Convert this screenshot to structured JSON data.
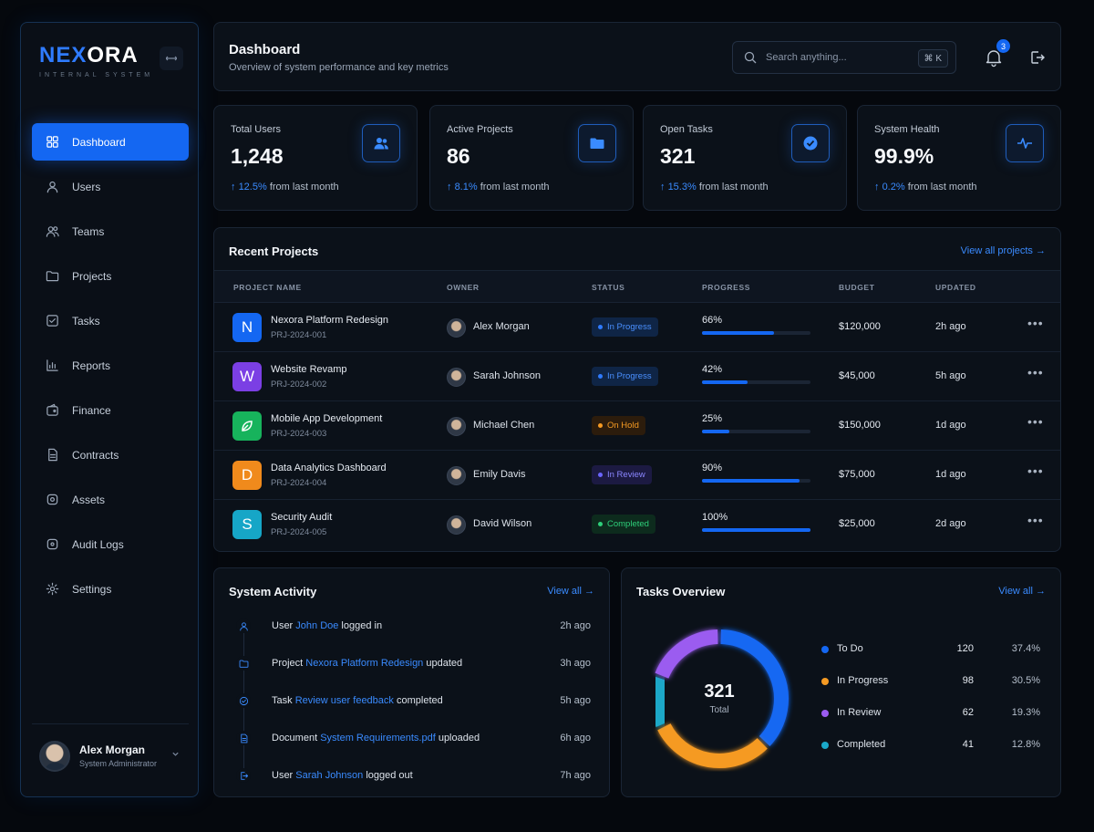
{
  "brand": {
    "logo_blue": "NEX",
    "logo_white": "ORA",
    "subtitle": "INTERNAL SYSTEM"
  },
  "sidebar": {
    "items": [
      {
        "label": "Dashboard",
        "icon": "grid-icon",
        "active": true
      },
      {
        "label": "Users",
        "icon": "user-icon"
      },
      {
        "label": "Teams",
        "icon": "team-icon"
      },
      {
        "label": "Projects",
        "icon": "folder-icon"
      },
      {
        "label": "Tasks",
        "icon": "check-square-icon"
      },
      {
        "label": "Reports",
        "icon": "chart-icon"
      },
      {
        "label": "Finance",
        "icon": "wallet-icon"
      },
      {
        "label": "Contracts",
        "icon": "document-icon"
      },
      {
        "label": "Assets",
        "icon": "box-icon"
      },
      {
        "label": "Audit Logs",
        "icon": "audit-icon"
      },
      {
        "label": "Settings",
        "icon": "gear-icon"
      }
    ],
    "user": {
      "name": "Alex Morgan",
      "role": "System Administrator"
    }
  },
  "header": {
    "title": "Dashboard",
    "subtitle": "Overview of system performance and key metrics",
    "search_placeholder": "Search anything...",
    "shortcut": "⌘ K",
    "notification_count": "3"
  },
  "stats": [
    {
      "title": "Total Users",
      "value": "1,248",
      "change": "12.5%",
      "suffix": " from last month",
      "icon": "users-icon"
    },
    {
      "title": "Active Projects",
      "value": "86",
      "change": "8.1%",
      "suffix": " from last month",
      "icon": "folder-icon"
    },
    {
      "title": "Open Tasks",
      "value": "321",
      "change": "15.3%",
      "suffix": " from last month",
      "icon": "check-circle-icon"
    },
    {
      "title": "System Health",
      "value": "99.9%",
      "change": "0.2%",
      "suffix": " from last month",
      "icon": "pulse-icon"
    }
  ],
  "projects": {
    "title": "Recent Projects",
    "link": "View all projects →",
    "columns": [
      "PROJECT NAME",
      "OWNER",
      "STATUS",
      "PROGRESS",
      "BUDGET",
      "UPDATED"
    ],
    "rows": [
      {
        "letter": "N",
        "name": "Nexora Platform Redesign",
        "id": "PRJ-2024-001",
        "owner": "Alex Morgan",
        "status": "In Progress",
        "progress": 66,
        "progress_label": "66%",
        "budget": "$120,000",
        "updated": "2h ago",
        "color": "#1467f2"
      },
      {
        "letter": "W",
        "name": "Website Revamp",
        "id": "PRJ-2024-002",
        "owner": "Sarah Johnson",
        "status": "In Progress",
        "progress": 42,
        "progress_label": "42%",
        "budget": "$45,000",
        "updated": "5h ago",
        "color": "#7b3fe4"
      },
      {
        "letter": "leaf-icon",
        "name": "Mobile App Development",
        "id": "PRJ-2024-003",
        "owner": "Michael Chen",
        "status": "On Hold",
        "progress": 25,
        "progress_label": "25%",
        "budget": "$150,000",
        "updated": "1d ago",
        "color": "#17b35c"
      },
      {
        "letter": "D",
        "name": "Data Analytics Dashboard",
        "id": "PRJ-2024-004",
        "owner": "Emily Davis",
        "status": "In Review",
        "progress": 90,
        "progress_label": "90%",
        "budget": "$75,000",
        "updated": "1d ago",
        "color": "#f08a1c"
      },
      {
        "letter": "S",
        "name": "Security Audit",
        "id": "PRJ-2024-005",
        "owner": "David Wilson",
        "status": "Completed",
        "progress": 100,
        "progress_label": "100%",
        "budget": "$25,000",
        "updated": "2d ago",
        "color": "#16a6c7"
      }
    ]
  },
  "activity": {
    "title": "System Activity",
    "link": "View all →",
    "items": [
      {
        "pre": "User ",
        "hl": "John Doe",
        "post": " logged in",
        "time": "2h ago",
        "icon": "user-icon"
      },
      {
        "pre": "Project ",
        "hl": "Nexora Platform Redesign",
        "post": " updated",
        "time": "3h ago",
        "icon": "folder-icon"
      },
      {
        "pre": "Task ",
        "hl": "Review user feedback",
        "post": " completed",
        "time": "5h ago",
        "icon": "check-circle-icon"
      },
      {
        "pre": "Document ",
        "hl": "System Requirements.pdf",
        "post": " uploaded",
        "time": "6h ago",
        "icon": "document-icon"
      },
      {
        "pre": "User ",
        "hl": "Sarah Johnson",
        "post": " logged out",
        "time": "7h ago",
        "icon": "logout-icon"
      }
    ]
  },
  "tasks": {
    "title": "Tasks Overview",
    "link": "View all →",
    "total": "321",
    "total_label": "Total",
    "legend": [
      {
        "label": "To Do",
        "count": "120",
        "pct": "37.4%",
        "color": "#1467f2",
        "value": 120
      },
      {
        "label": "In Progress",
        "count": "98",
        "pct": "30.5%",
        "color": "#f59a23",
        "value": 98
      },
      {
        "label": "In Review",
        "count": "62",
        "pct": "19.3%",
        "color": "#9b5cf0",
        "value": 62
      },
      {
        "label": "Completed",
        "count": "41",
        "pct": "12.8%",
        "color": "#1aa8c8",
        "value": 41
      }
    ]
  }
}
